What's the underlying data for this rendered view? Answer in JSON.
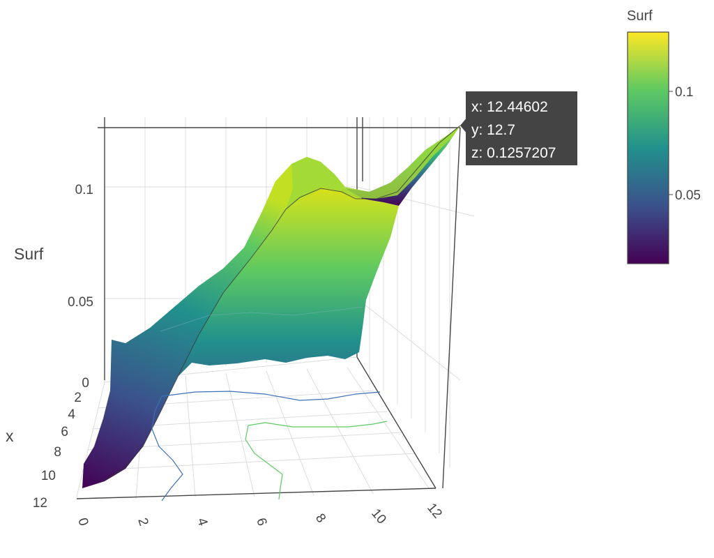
{
  "chart_data": {
    "type": "surface3d",
    "axes": {
      "x": {
        "title": "x",
        "range": [
          0,
          12
        ],
        "ticks": [
          "0",
          "2",
          "4",
          "6",
          "8",
          "10",
          "12"
        ]
      },
      "y": {
        "title": "",
        "range": [
          0,
          12.7
        ],
        "ticks": [
          "0",
          "2",
          "4",
          "6",
          "8",
          "10",
          "12"
        ]
      },
      "z": {
        "title": "Surf",
        "range": [
          0,
          0.126
        ],
        "ticks": [
          "0",
          "0.05",
          "0.1"
        ]
      }
    },
    "colorscale": {
      "name": "Viridis",
      "title": "Surf",
      "range": [
        0.014,
        0.126
      ],
      "ticks": [
        "0.05",
        "0.1"
      ],
      "colors": [
        "#440154",
        "#3b528b",
        "#21918c",
        "#5ec962",
        "#fde725"
      ]
    },
    "surface": {
      "description_values": {
        "min_z": 0.014,
        "max_z": 0.1257207,
        "peak_point": {
          "x": 12.44602,
          "y": 12.7,
          "z": 0.1257207
        }
      }
    },
    "hover": {
      "lines": [
        "x: 12.44602",
        "y: 12.7",
        "z: 0.1257207"
      ]
    }
  }
}
